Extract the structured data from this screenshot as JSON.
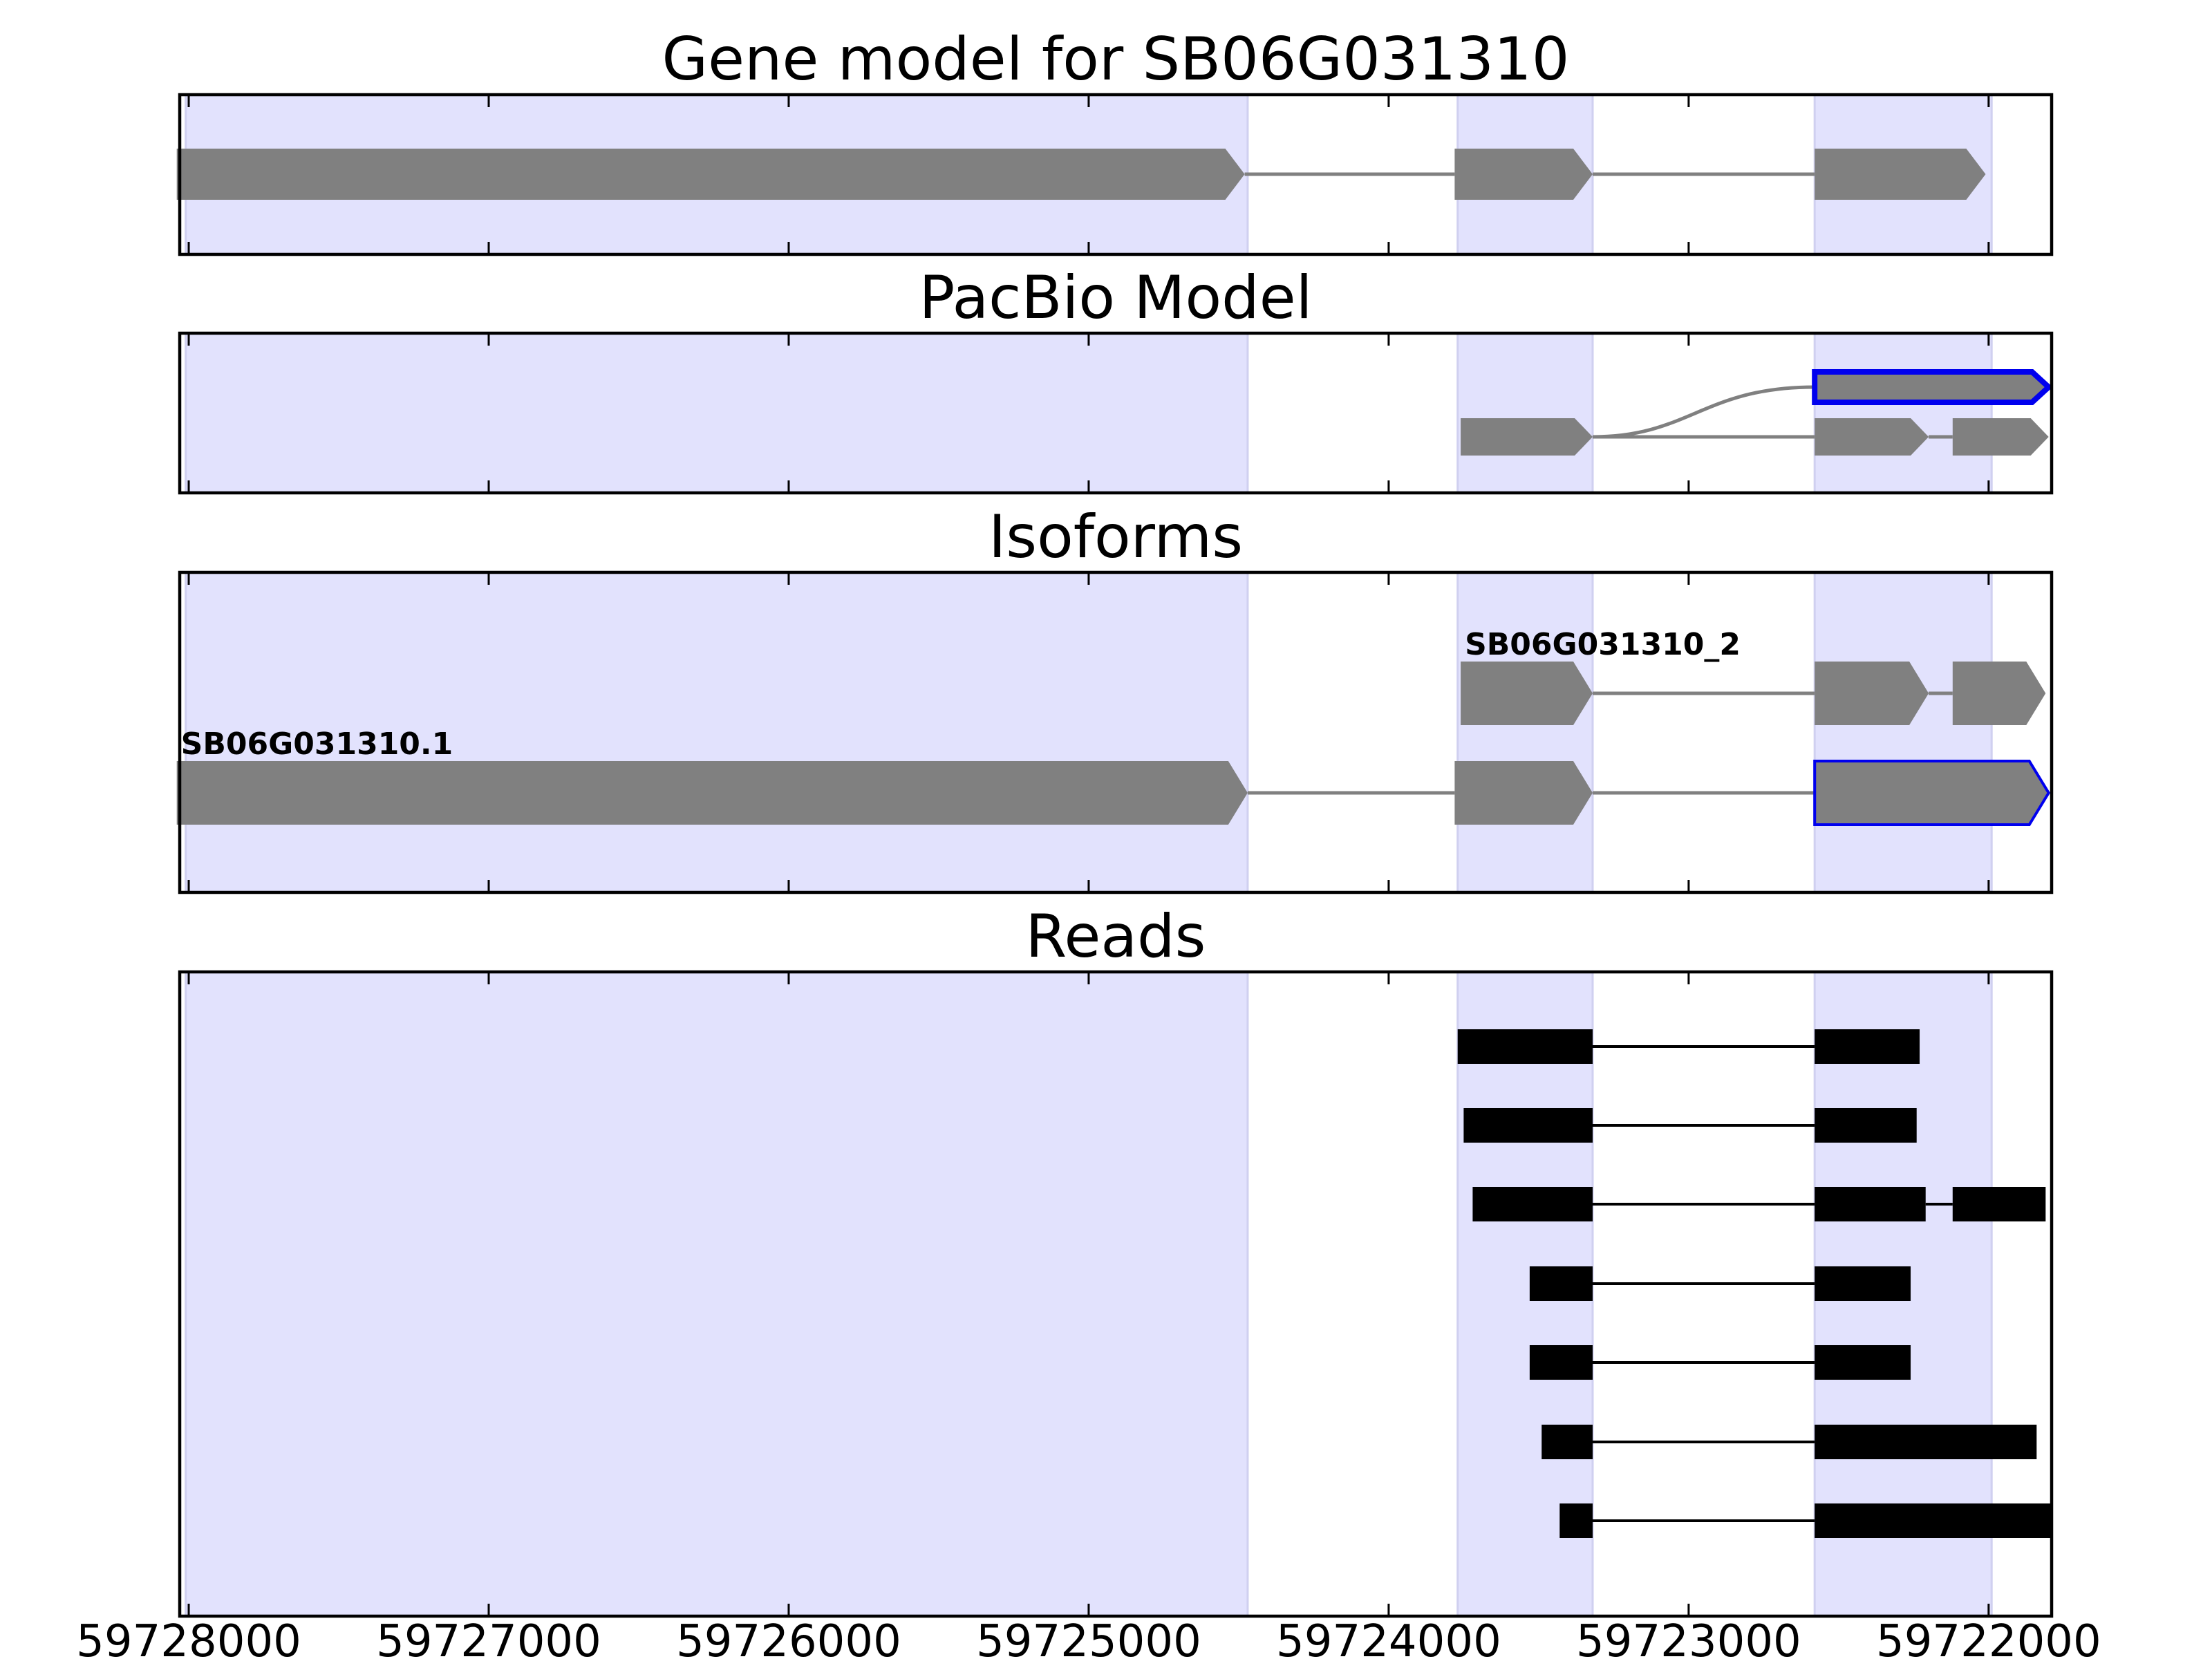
{
  "figure": {
    "background": "#ffffff",
    "exon_band_color": "#e2e2fd",
    "exon_band_edge": "#d0d0f0",
    "feature_color": "#808080",
    "highlight_color": "#0000ee",
    "read_color": "#000000"
  },
  "chart_data": {
    "type": "gene_model_tracks",
    "xlim": [
      59728030,
      59721790
    ],
    "x_reversed": true,
    "x_ticks": [
      59728000,
      59727000,
      59726000,
      59725000,
      59724000,
      59723000,
      59722000
    ],
    "x_tick_labels": [
      "59728000",
      "59727000",
      "59726000",
      "59725000",
      "59724000",
      "59723000",
      "59722000"
    ],
    "exon_bands": [
      [
        59728010,
        59724470
      ],
      [
        59723770,
        59723320
      ],
      [
        59722580,
        59721990
      ]
    ],
    "panels": [
      {
        "title": "Gene model for SB06G031310",
        "tracks": [
          {
            "exons": [
              [
                59728040,
                59724480
              ],
              [
                59723780,
                59723320
              ],
              [
                59722580,
                59722010
              ]
            ],
            "label": "",
            "highlight": null
          }
        ]
      },
      {
        "title": "PacBio Model",
        "tracks": [
          {
            "exons": [
              [
                59722580,
                59721800
              ]
            ],
            "label": "",
            "highlight": "thick",
            "join_from": [
              59723320,
              1
            ]
          },
          {
            "exons": [
              [
                59723760,
                59723320
              ],
              [
                59722580,
                59722200
              ],
              [
                59722120,
                59721800
              ]
            ],
            "label": "",
            "highlight": null
          }
        ]
      },
      {
        "title": "Isoforms",
        "tracks": [
          {
            "exons": [
              [
                59723760,
                59723320
              ],
              [
                59722580,
                59722200
              ],
              [
                59722120,
                59721810
              ]
            ],
            "label": "SB06G031310_2",
            "highlight": null
          },
          {
            "exons": [
              [
                59728040,
                59724470
              ],
              [
                59723780,
                59723320
              ],
              [
                59722580,
                59721800
              ]
            ],
            "label": "SB06G031310.1",
            "highlight": null,
            "last_exon_highlight": "thin"
          }
        ]
      },
      {
        "title": "Reads",
        "reads": [
          [
            [
              59723770,
              59723320
            ],
            [
              59722580,
              59722230
            ]
          ],
          [
            [
              59723750,
              59723320
            ],
            [
              59722580,
              59722240
            ]
          ],
          [
            [
              59723720,
              59723320
            ],
            [
              59722580,
              59722210
            ],
            [
              59722120,
              59721810
            ]
          ],
          [
            [
              59723530,
              59723320
            ],
            [
              59722580,
              59722260
            ]
          ],
          [
            [
              59723530,
              59723320
            ],
            [
              59722580,
              59722260
            ]
          ],
          [
            [
              59723490,
              59723320
            ],
            [
              59722580,
              59721840
            ]
          ],
          [
            [
              59723430,
              59723320
            ],
            [
              59722580,
              59721790
            ]
          ]
        ]
      }
    ]
  }
}
